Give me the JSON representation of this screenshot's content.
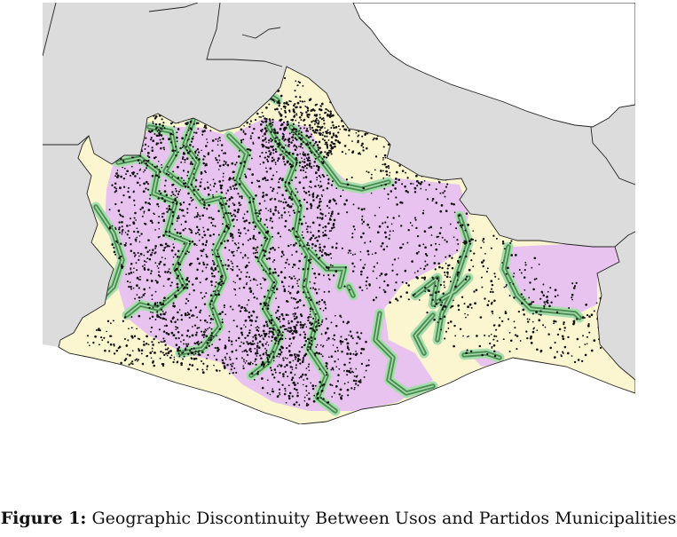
{
  "figure": {
    "label": "Figure 1:",
    "caption": "Geographic Discontinuity Between Usos and Partidos Municipalities"
  },
  "map": {
    "colors": {
      "background_land": "#dcdcdc",
      "border": "#222222",
      "usos": "#e8c3f0",
      "partidos": "#fbf6cf",
      "buffer_outer": "#a9dcae",
      "buffer_inner": "#4b8f52",
      "points": "#111111"
    },
    "legend_visible": false
  }
}
